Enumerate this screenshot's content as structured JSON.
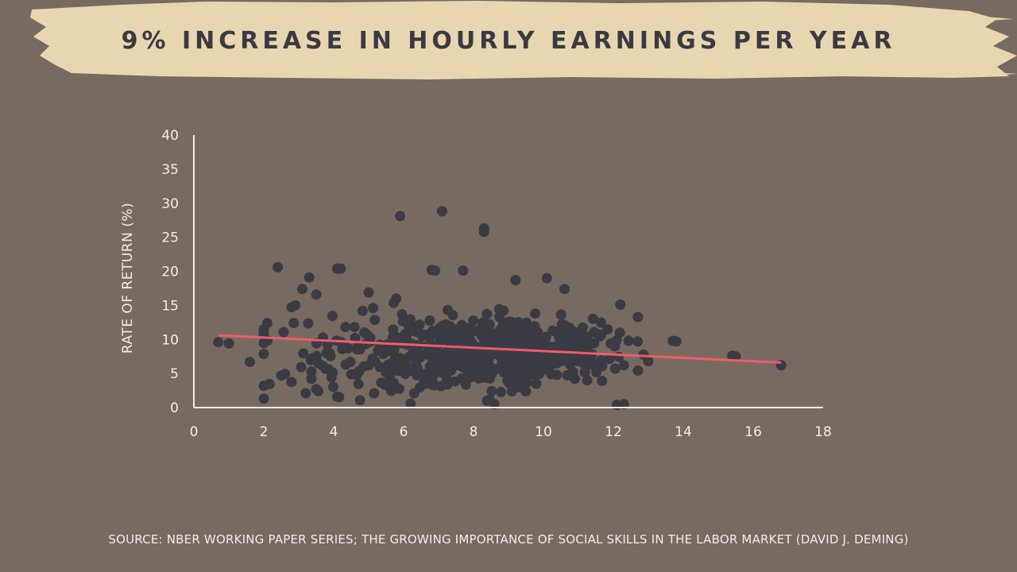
{
  "header": {
    "title": "9% INCREASE IN HOURLY EARNINGS PER YEAR"
  },
  "footer": {
    "source": "SOURCE: NBER WORKING PAPER SERIES; THE GROWING IMPORTANCE OF SOCIAL SKILLS IN THE LABOR MARKET (DAVID J. DEMING)"
  },
  "colors": {
    "background": "#776a60",
    "banner": "#e7d6b0",
    "points": "#3b3b44",
    "trend": "#ef5a6a",
    "axis": "#f1ece6",
    "title": "#3a3a42"
  },
  "chart_data": {
    "type": "scatter",
    "title": "9% INCREASE IN HOURLY EARNINGS PER YEAR",
    "xlabel": "",
    "ylabel": "RATE OF RETURN (%)",
    "xlim": [
      0,
      18
    ],
    "ylim": [
      0,
      40
    ],
    "xticks": [
      "0",
      "2",
      "4",
      "6",
      "8",
      "10",
      "12",
      "14",
      "16",
      "18"
    ],
    "yticks": [
      "0",
      "5",
      "10",
      "15",
      "20",
      "25",
      "30",
      "35",
      "40"
    ],
    "grid": false,
    "legend": "none",
    "trend_line": {
      "x": [
        0.7,
        16.8
      ],
      "y": [
        10.6,
        6.6
      ]
    },
    "outliers": [
      [
        0.7,
        9.6
      ],
      [
        1.0,
        9.4
      ],
      [
        1.6,
        6.7
      ],
      [
        2.1,
        12.4
      ],
      [
        2.4,
        20.6
      ],
      [
        2.5,
        4.7
      ],
      [
        2.9,
        15.0
      ],
      [
        3.1,
        17.4
      ],
      [
        3.2,
        2.1
      ],
      [
        3.3,
        19.1
      ],
      [
        3.5,
        16.6
      ],
      [
        3.5,
        2.7
      ],
      [
        4.1,
        20.4
      ],
      [
        4.2,
        20.4
      ],
      [
        4.1,
        1.6
      ],
      [
        5.0,
        16.9
      ],
      [
        5.9,
        28.1
      ],
      [
        6.2,
        0.6
      ],
      [
        6.3,
        2.1
      ],
      [
        6.8,
        20.2
      ],
      [
        6.9,
        20.1
      ],
      [
        7.1,
        28.8
      ],
      [
        7.7,
        20.1
      ],
      [
        8.3,
        26.3
      ],
      [
        8.3,
        25.8
      ],
      [
        8.6,
        0.5
      ],
      [
        9.2,
        18.7
      ],
      [
        10.1,
        19.0
      ],
      [
        10.6,
        17.4
      ],
      [
        12.2,
        15.1
      ],
      [
        12.1,
        0.4
      ],
      [
        12.3,
        0.5
      ],
      [
        12.7,
        13.3
      ],
      [
        13.7,
        9.8
      ],
      [
        13.8,
        9.7
      ],
      [
        15.4,
        7.6
      ],
      [
        15.5,
        7.5
      ],
      [
        16.8,
        6.2
      ]
    ],
    "cluster": {
      "description_points": 600,
      "x_range": [
        2.0,
        13.0
      ],
      "y_range": [
        1.0,
        16.0
      ]
    }
  }
}
